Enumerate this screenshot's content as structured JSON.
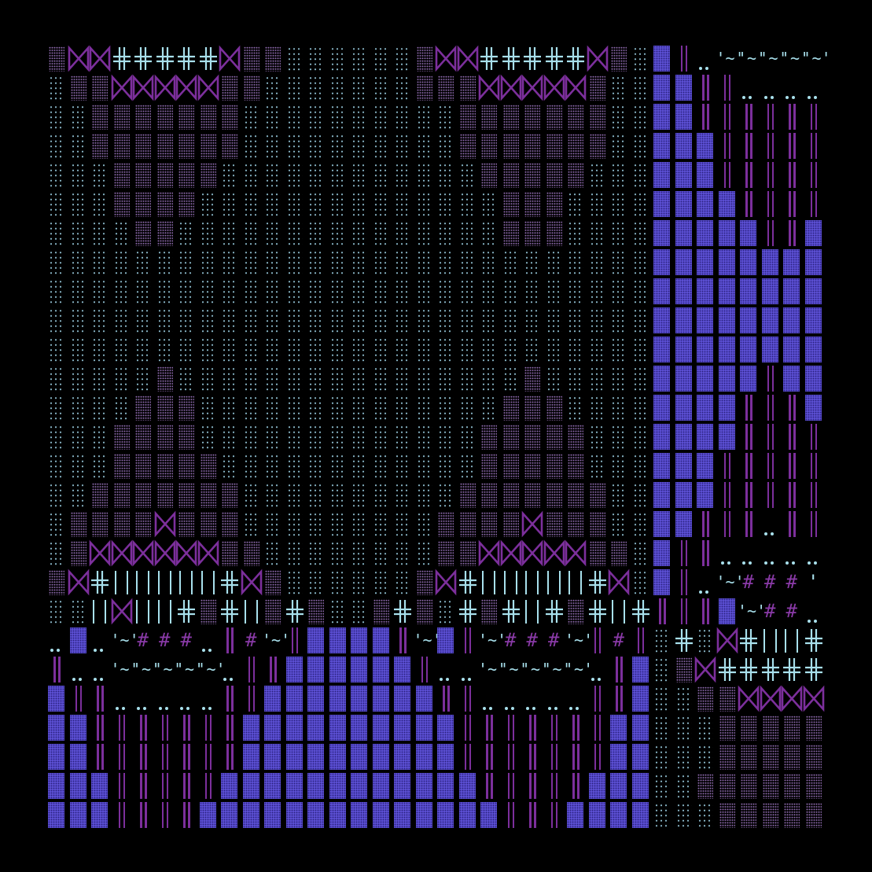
{
  "colors": {
    "background": "#000000",
    "cyan": "#a8e0ec",
    "lilac": "#8e6aae",
    "purple": "#7c2f9c",
    "blue": "#5b4fd2"
  },
  "legend": {
    "a": {
      "name": "sparse-cyan-dot-tile",
      "glyph": ""
    },
    "b": {
      "name": "dense-lilac-dot-tile",
      "glyph": ""
    },
    "B": {
      "name": "blue-block-tile",
      "glyph": ""
    },
    "|": {
      "name": "purple-double-bar",
      "glyph": ""
    },
    "X": {
      "name": "bowtie-icon",
      "glyph": ""
    },
    "+": {
      "name": "double-cross-icon",
      "glyph": ""
    },
    "i": {
      "name": "cyan-pipes",
      "glyph": ""
    },
    ".": {
      "name": "double-dot",
      "glyph": ""
    },
    "~": {
      "name": "tilde-quote",
      "glyph": "'~'"
    },
    "#": {
      "name": "hash-glyph",
      "glyph": "#"
    },
    "'": {
      "name": "quote-glyph",
      "glyph": "'"
    },
    "_": {
      "name": "empty-cell",
      "glyph": ""
    }
  },
  "grid": [
    "bXX+++++XbbaaaaaabXX+++++XbaB|.~~~~~",
    "abbXXXXXbbaaaaaaabbbXXXXXbaaBB||....",
    "aabbbbbbbaaaaaaaaaabbbbbbbaaBB||||||",
    "aabbbbbbbaaaaaaaaaabbbbbbbaaBBB|||||",
    "aaabbbbbaaaaaaaaaaaabbbbbaaaBBB|||||",
    "aaabbbbaaaaaaaaaaaaaabbbaaaaBBBB||||",
    "aaaabbaaaaaaaaaaaaaaabbbaaaaBBBBB||B",
    "aaaaaaaaaaaaaaaaaaaaaaaaaaaaBBBBBBBB",
    "aaaaaaaaaaaaaaaaaaaaaaaaaaaaBBBBBBBB",
    "aaaaaaaaaaaaaaaaaaaaaaaaaaaaBBBBBBBB",
    "aaaaaaaaaaaaaaaaaaaaaaaaaaaaBBBBBBBB",
    "aaaaabaaaaaaaaaaaaaaaabaaaaaBBBBB|BB",
    "aaaabbbaaaaaaaaaaaaaabbbaaaaBBBB|||B",
    "aaabbbbaaaaaaaaaaaaabbbbbaaaBBBB||||",
    "aaabbbbbaaaaaaaaaaaabbbbbaaaBBB|||||",
    "aabbbbbbbaaaaaaaaaabbbbbbbaaBBB|||||",
    "abbbbXbbbaaaaaaaaabbbbXbbbaaBB|||.||",
    "abXXXXXXbbaaaaaaaabbXXXXXbbaB||.....",
    "bX+iiiii+XbaaaaaabX+iiiii+XaB|.~###'",
    "aaiXii+b+ib+baab+ba+b+i+b+i+|||B~##.",
    ".B.~###.|#~|BBBB|~B|~###~|#|a+aX+ii+",
    "|..~~~~~.||BBBBBB|..~~~~~.|BabX+++++",
    "B||.....||BBBBBBBB||.....||BaabbXXXX",
    "BB|||||||BBBBBBBBBB|||||||BBaaabbbbb",
    "BB|||||||BBBBBBBBBB|||||||BBaaabbbbb",
    "BBB|||||BBBBBBBBBBBB|||||BBBaabbbbbb",
    "BBB||||BBBBBBBBBBBBBB|||BBBBaaabbbbb"
  ]
}
